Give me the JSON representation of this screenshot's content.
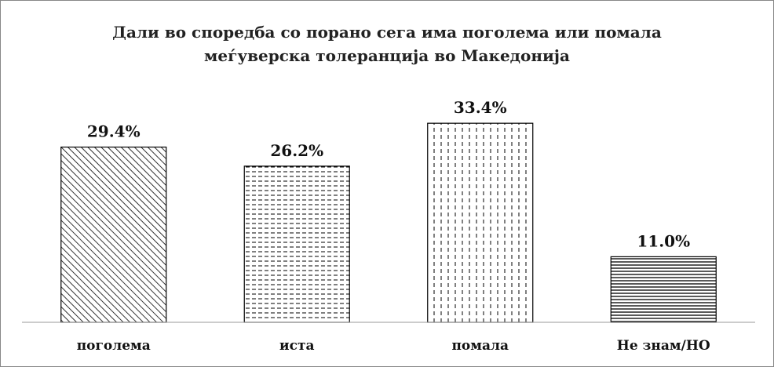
{
  "chart_data": {
    "type": "bar",
    "title": "Дали во споредба со порано сега има поголема или помала\nмеѓуверска толеранција во Македонија",
    "categories": [
      "поголема",
      "иста",
      "помала",
      "Не знам/НО"
    ],
    "values": [
      29.4,
      26.2,
      33.4,
      11.0
    ],
    "value_labels": [
      "29.4%",
      "26.2%",
      "33.4%",
      "11.0%"
    ]
  }
}
